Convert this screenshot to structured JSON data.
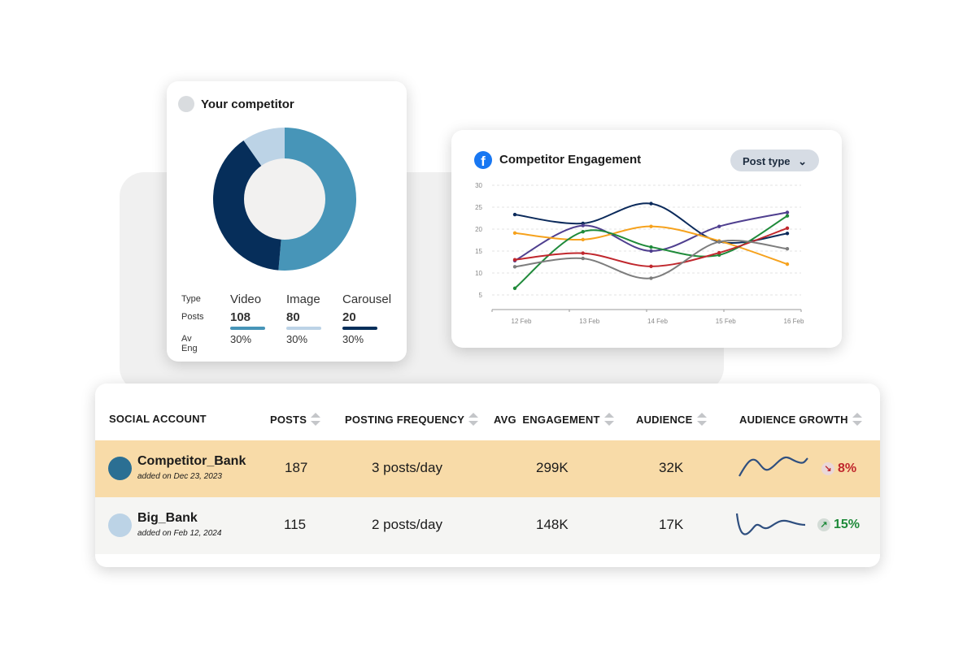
{
  "competitor_card": {
    "title": "Your competitor",
    "row_labels": [
      "Type",
      "Posts",
      "Av Eng"
    ],
    "types": [
      {
        "type": "Video",
        "posts": "108",
        "av_eng": "30%",
        "color": "#4795b8"
      },
      {
        "type": "Image",
        "posts": "80",
        "av_eng": "30%",
        "color": "#bcd3e6"
      },
      {
        "type": "Carousel",
        "posts": "20",
        "av_eng": "30%",
        "color": "#062e5a"
      }
    ]
  },
  "engagement_card": {
    "title": "Competitor Engagement",
    "icon": "facebook-icon",
    "dropdown": "Post type"
  },
  "chart_data": {
    "type": "line",
    "title": "Competitor Engagement",
    "categories": [
      "12 Feb",
      "13 Feb",
      "14 Feb",
      "15 Feb",
      "16 Feb"
    ],
    "ylim": [
      0,
      30
    ],
    "yticks": [
      5,
      10,
      15,
      20,
      25,
      30
    ],
    "grid": true,
    "series": [
      {
        "color": "#0b2a5b",
        "values": [
          23.5,
          21.5,
          26,
          17.3,
          19.2
        ]
      },
      {
        "color": "#4f3f8f",
        "values": [
          13,
          21,
          15.2,
          20.8,
          24
        ]
      },
      {
        "color": "#f6a21d",
        "values": [
          19.3,
          17.8,
          20.8,
          17.5,
          12.2
        ]
      },
      {
        "color": "#1f8a3a",
        "values": [
          6.7,
          19.6,
          16.1,
          14.3,
          23.2
        ]
      },
      {
        "color": "#c0272d",
        "values": [
          13.2,
          14.7,
          11.7,
          14.8,
          20.4
        ]
      },
      {
        "color": "#7d7d7d",
        "values": [
          11.6,
          13.5,
          9,
          17.3,
          15.7
        ]
      }
    ]
  },
  "table": {
    "headers": [
      "SOCIAL ACCOUNT",
      "POSTS",
      "POSTING FREQUENCY",
      "AVG  ENGAGEMENT",
      "AUDIENCE",
      "AUDIENCE GROWTH"
    ],
    "rows": [
      {
        "account": "Competitor_Bank",
        "added": "added on Dec 23, 2023",
        "posts": "187",
        "frequency": "3 posts/day",
        "engagement": "299K",
        "audience": "32K",
        "growth": "8%",
        "trend": "down",
        "avatar": "#2b6f93",
        "bg": "#f8dba8",
        "growth_color": "#c0272d"
      },
      {
        "account": "Big_Bank",
        "added": "added on Feb 12, 2024",
        "posts": "115",
        "frequency": "2 posts/day",
        "engagement": "148K",
        "audience": "17K",
        "growth": "15%",
        "trend": "up",
        "avatar": "#bcd3e6",
        "bg": "#f5f5f3",
        "growth_color": "#1f8a3a"
      }
    ]
  }
}
